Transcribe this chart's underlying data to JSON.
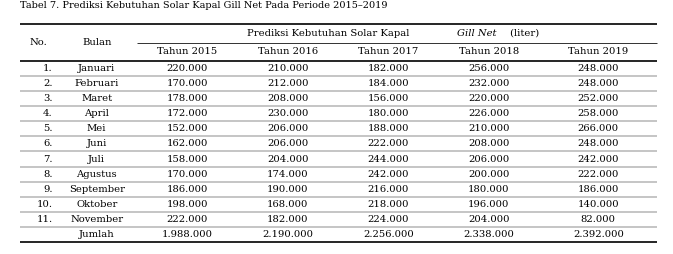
{
  "title": "Tabel 7. Prediksi Kebutuhan Solar Kapal Gill Net Pada Periode 2015–2019",
  "header_main_normal": "Prediksi Kebutuhan Solar Kapal ",
  "header_main_italic": "Gill Net",
  "header_main_end": " (liter)",
  "col_headers": [
    "Tahun 2015",
    "Tahun 2016",
    "Tahun 2017",
    "Tahun 2018",
    "Tahun 2019"
  ],
  "row_no": [
    "1.",
    "2.",
    "3.",
    "4.",
    "5.",
    "6.",
    "7.",
    "8.",
    "9.",
    "10.",
    "11.",
    ""
  ],
  "row_bulan": [
    "Januari",
    "Februari",
    "Maret",
    "April",
    "Mei",
    "Juni",
    "Juli",
    "Agustus",
    "September",
    "Oktober",
    "November",
    "Jumlah"
  ],
  "data": [
    [
      "220.000",
      "210.000",
      "182.000",
      "256.000",
      "248.000"
    ],
    [
      "170.000",
      "212.000",
      "184.000",
      "232.000",
      "248.000"
    ],
    [
      "178.000",
      "208.000",
      "156.000",
      "220.000",
      "252.000"
    ],
    [
      "172.000",
      "230.000",
      "180.000",
      "226.000",
      "258.000"
    ],
    [
      "152.000",
      "206.000",
      "188.000",
      "210.000",
      "266.000"
    ],
    [
      "162.000",
      "206.000",
      "222.000",
      "208.000",
      "248.000"
    ],
    [
      "158.000",
      "204.000",
      "244.000",
      "206.000",
      "242.000"
    ],
    [
      "170.000",
      "174.000",
      "242.000",
      "200.000",
      "222.000"
    ],
    [
      "186.000",
      "190.000",
      "216.000",
      "180.000",
      "186.000"
    ],
    [
      "198.000",
      "168.000",
      "218.000",
      "196.000",
      "140.000"
    ],
    [
      "222.000",
      "182.000",
      "224.000",
      "204.000",
      "82.000"
    ],
    [
      "1.988.000",
      "2.190.000",
      "2.256.000",
      "2.338.000",
      "2.392.000"
    ]
  ],
  "bg_color": "#ffffff",
  "text_color": "#000000",
  "font_size": 7.2,
  "title_font_size": 7.0
}
